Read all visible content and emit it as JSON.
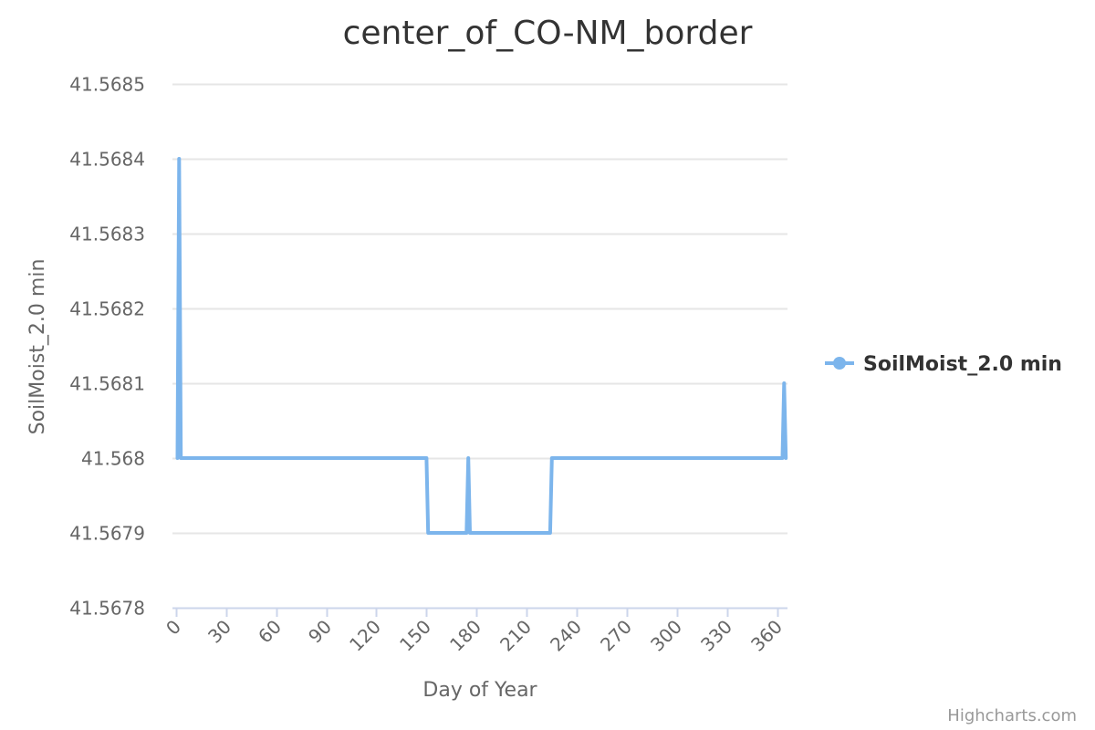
{
  "chart_data": {
    "type": "line",
    "title": "center_of_CO-NM_border",
    "xlabel": "Day of Year",
    "ylabel": "SoilMoist_2.0 min",
    "xlim": [
      -2,
      366
    ],
    "ylim": [
      41.5678,
      41.5685
    ],
    "x_ticks": [
      0,
      30,
      60,
      90,
      120,
      150,
      180,
      210,
      240,
      270,
      300,
      330,
      360
    ],
    "y_ticks": [
      41.5678,
      41.5679,
      41.568,
      41.5681,
      41.5682,
      41.5683,
      41.5684,
      41.5685
    ],
    "y_tick_labels": [
      "41.5678",
      "41.5679",
      "41.568",
      "41.5681",
      "41.5682",
      "41.5683",
      "41.5684",
      "41.5685"
    ],
    "grid": true,
    "legend_position": "right",
    "series": [
      {
        "name": "SoilMoist_2.0 min",
        "color": "#7cb5ec",
        "x": [
          1,
          2,
          3,
          4,
          150,
          151,
          174,
          175,
          176,
          224,
          225,
          363,
          364,
          365
        ],
        "y": [
          41.568,
          41.5684,
          41.568,
          41.568,
          41.568,
          41.5679,
          41.5679,
          41.568,
          41.5679,
          41.5679,
          41.568,
          41.568,
          41.5681,
          41.568
        ]
      }
    ],
    "credits": "Highcharts.com"
  }
}
